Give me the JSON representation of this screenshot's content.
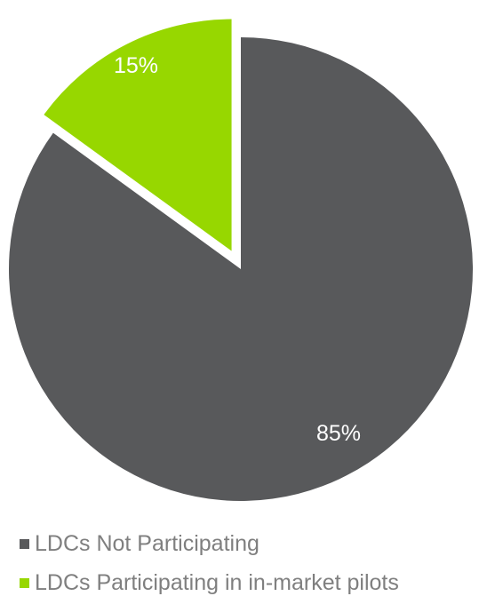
{
  "chart_data": {
    "type": "pie",
    "title": "",
    "slices": [
      {
        "label": "LDCs Not Participating",
        "value": 85,
        "display": "85%",
        "color": "#58595b"
      },
      {
        "label": "LDCs Participating in in-market pilots",
        "value": 15,
        "display": "15%",
        "color": "#97d700",
        "exploded": true
      }
    ],
    "legend_position": "bottom-left"
  }
}
